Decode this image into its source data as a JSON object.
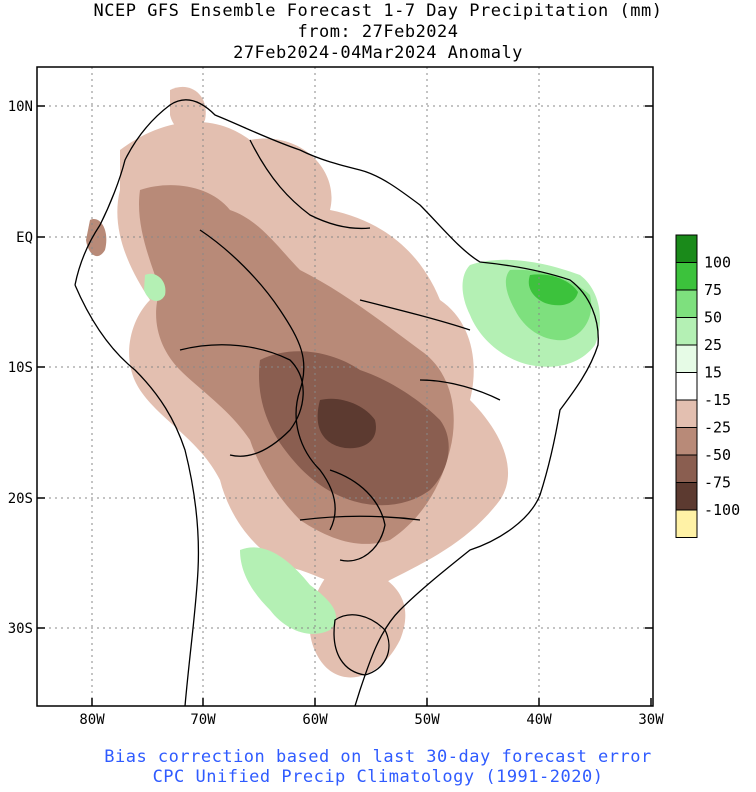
{
  "title": {
    "line1": "NCEP GFS Ensemble Forecast 1-7 Day Precipitation (mm)",
    "line2": "from: 27Feb2024",
    "line3": "27Feb2024-04Mar2024 Anomaly"
  },
  "map": {
    "lat_labels": [
      "10N",
      "EQ",
      "10S",
      "20S",
      "30S"
    ],
    "lon_labels": [
      "80W",
      "70W",
      "60W",
      "50W",
      "40W",
      "30W"
    ],
    "gridlines": "dotted"
  },
  "colorbar": {
    "levels": [
      {
        "label": "100",
        "color": "#1a8a1a"
      },
      {
        "label": "75",
        "color": "#3cc23c"
      },
      {
        "label": "50",
        "color": "#7ee07e"
      },
      {
        "label": "25",
        "color": "#b4f0b4"
      },
      {
        "label": "15",
        "color": "#e6fbe6"
      },
      {
        "label": "-15",
        "color": "#ffffff"
      },
      {
        "label": "-25",
        "color": "#e3bfb0"
      },
      {
        "label": "-50",
        "color": "#b88a78"
      },
      {
        "label": "-75",
        "color": "#8a5e50"
      },
      {
        "label": "-100",
        "color": "#5c3a30"
      },
      {
        "label": "",
        "color": "#3d2018"
      }
    ],
    "low_end_color": "#fff2a6"
  },
  "footer": {
    "line1": "Bias correction based on last 30-day forecast error",
    "line2": "CPC Unified Precip Climatology (1991-2020)"
  }
}
